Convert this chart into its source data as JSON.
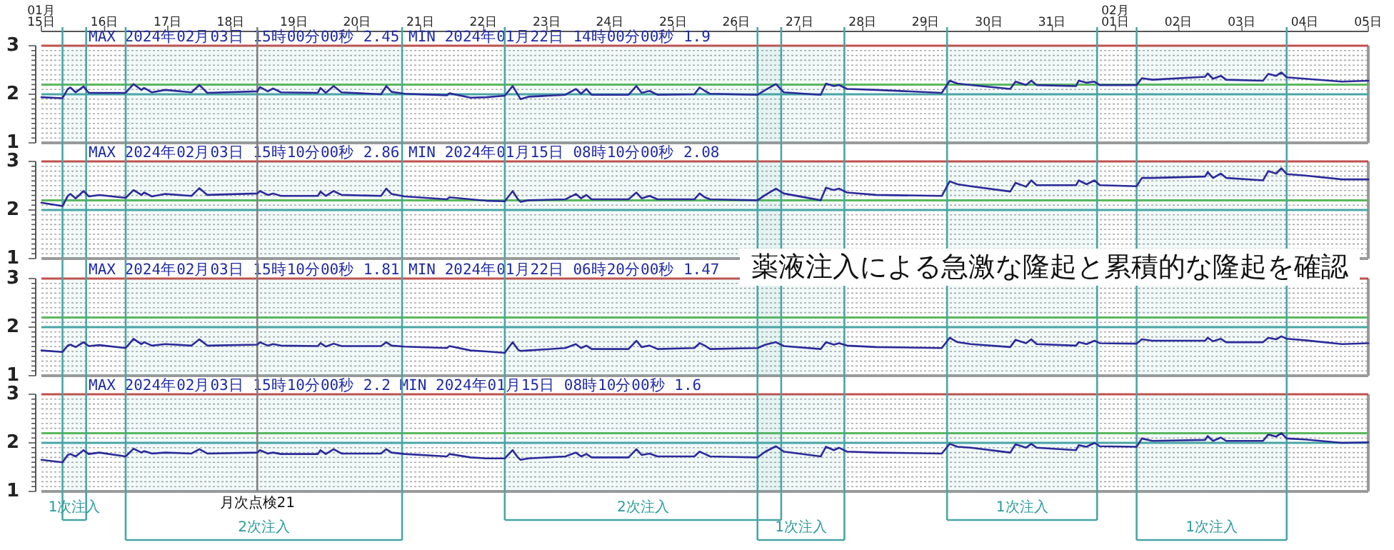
{
  "chart_data": [
    {
      "type": "line",
      "title": "MAX 2024年02月03日 15時00分00秒 2.45 MIN 2024年01月22日 14時00分00秒 1.9",
      "color": "#2b2b9a",
      "grid": "y",
      "xlim": [
        "2024-01-15T00:00",
        "2024-02-05T00:00"
      ],
      "ylim": [
        1,
        3
      ],
      "xticks": [
        {
          "value": "2024-01-15",
          "label": "01月 15日"
        },
        {
          "value": "2024-01-16",
          "label": "16日"
        },
        {
          "value": "2024-01-17",
          "label": "17日"
        },
        {
          "value": "2024-01-18",
          "label": "18日"
        },
        {
          "value": "2024-01-19",
          "label": "19日"
        },
        {
          "value": "2024-01-20",
          "label": "20日"
        },
        {
          "value": "2024-01-21",
          "label": "21日"
        },
        {
          "value": "2024-01-22",
          "label": "22日"
        },
        {
          "value": "2024-01-23",
          "label": "23日"
        },
        {
          "value": "2024-01-24",
          "label": "24日"
        },
        {
          "value": "2024-01-25",
          "label": "25日"
        },
        {
          "value": "2024-01-26",
          "label": "26日"
        },
        {
          "value": "2024-01-27",
          "label": "27日"
        },
        {
          "value": "2024-01-28",
          "label": "28日"
        },
        {
          "value": "2024-01-29",
          "label": "29日"
        },
        {
          "value": "2024-01-30",
          "label": "30日"
        },
        {
          "value": "2024-01-31",
          "label": "31日"
        },
        {
          "value": "2024-02-01",
          "label": "02月 01日"
        },
        {
          "value": "2024-02-02",
          "label": "02日"
        },
        {
          "value": "2024-02-03",
          "label": "03日"
        },
        {
          "value": "2024-02-04",
          "label": "04日"
        },
        {
          "value": "2024-02-05",
          "label": "05日"
        }
      ],
      "yticks": [
        1,
        {
          "value": 1.1,
          "label": null
        },
        {
          "value": 1.2,
          "label": null
        },
        {
          "value": 1.3,
          "label": null
        },
        {
          "value": 1.4,
          "label": null
        },
        {
          "value": 1.5,
          "label": null
        },
        {
          "value": 1.6,
          "label": null
        },
        {
          "value": 1.7,
          "label": null
        },
        {
          "value": 1.8,
          "label": null
        },
        {
          "value": 1.9,
          "label": null
        },
        2,
        {
          "value": 2.1,
          "label": null
        },
        {
          "value": 2.2,
          "label": null
        },
        {
          "value": 2.3,
          "label": null
        },
        {
          "value": 2.4,
          "label": null
        },
        {
          "value": 2.5,
          "label": null
        },
        {
          "value": 2.6,
          "label": null
        },
        {
          "value": 2.7,
          "label": null
        },
        {
          "value": 2.8,
          "label": null
        },
        {
          "value": 2.9,
          "label": null
        },
        3
      ],
      "ref_lines": [
        {
          "axis": "y",
          "value": 3,
          "color": "#c0504d"
        },
        {
          "axis": "y",
          "value": 2.2,
          "color": "#5cb85c"
        },
        {
          "axis": "y",
          "value": 2,
          "color": "#4aa5a5"
        },
        {
          "axis": "x",
          "value": "2024-01-18T10:00",
          "color": "#808080"
        },
        {
          "axis": "x",
          "value": "2024-01-15T08:00",
          "color": "#4aa5a5"
        },
        {
          "axis": "x",
          "value": "2024-01-15T17:00",
          "color": "#4aa5a5"
        },
        {
          "axis": "x",
          "value": "2024-01-16T08:00",
          "color": "#4aa5a5"
        },
        {
          "axis": "x",
          "value": "2024-01-20T17:00",
          "color": "#4aa5a5"
        },
        {
          "axis": "x",
          "value": "2024-01-22T08:00",
          "color": "#4aa5a5"
        },
        {
          "axis": "x",
          "value": "2024-01-26T08:00",
          "color": "#4aa5a5"
        },
        {
          "axis": "x",
          "value": "2024-01-26T17:00",
          "color": "#4aa5a5"
        },
        {
          "axis": "x",
          "value": "2024-01-27T17:00",
          "color": "#4aa5a5"
        },
        {
          "axis": "x",
          "value": "2024-01-29T08:00",
          "color": "#4aa5a5"
        },
        {
          "axis": "x",
          "value": "2024-01-31T17:00",
          "color": "#4aa5a5"
        },
        {
          "axis": "x",
          "value": "2024-02-01T08:00",
          "color": "#4aa5a5"
        },
        {
          "axis": "x",
          "value": "2024-02-03T17:00",
          "color": "#4aa5a5"
        }
      ],
      "bands": [
        {
          "axis": "x",
          "from": "2024-01-15T08:00",
          "to": "2024-01-15T17:00",
          "color": "#4aa5a5"
        },
        {
          "axis": "x",
          "from": "2024-01-16T08:00",
          "to": "2024-01-20T17:00",
          "color": "#4aa5a5"
        },
        {
          "axis": "x",
          "from": "2024-01-22T08:00",
          "to": "2024-01-26T17:00",
          "color": "#4aa5a5"
        },
        {
          "axis": "x",
          "from": "2024-01-26T08:00",
          "to": "2024-01-27T17:00",
          "color": "#4aa5a5"
        },
        {
          "axis": "x",
          "from": "2024-01-29T08:00",
          "to": "2024-01-31T17:00",
          "color": "#4aa5a5"
        },
        {
          "axis": "x",
          "from": "2024-02-01T08:00",
          "to": "2024-02-03T17:00",
          "color": "#4aa5a5"
        }
      ],
      "x": [
        "2024-01-15T00:00",
        "2024-01-15T08:00",
        "2024-01-15T10:00",
        "2024-01-15T11:00",
        "2024-01-15T13:00",
        "2024-01-15T16:00",
        "2024-01-15T18:00",
        "2024-01-15T22:00",
        "2024-01-16T08:00",
        "2024-01-16T11:00",
        "2024-01-16T14:00",
        "2024-01-16T15:00",
        "2024-01-16T18:00",
        "2024-01-16T23:00",
        "2024-01-17T09:00",
        "2024-01-17T12:00",
        "2024-01-17T15:00",
        "2024-01-18T10:00",
        "2024-01-18T11:00",
        "2024-01-18T14:00",
        "2024-01-18T16:00",
        "2024-01-18T19:00",
        "2024-01-19T09:00",
        "2024-01-19T10:00",
        "2024-01-19T12:00",
        "2024-01-19T15:00",
        "2024-01-19T18:00",
        "2024-01-20T09:00",
        "2024-01-20T11:00",
        "2024-01-20T13:00",
        "2024-01-20T18:00",
        "2024-01-21T10:00",
        "2024-01-21T11:00",
        "2024-01-21T19:00",
        "2024-01-22T01:00",
        "2024-01-22T08:00",
        "2024-01-22T11:00",
        "2024-01-22T13:00",
        "2024-01-22T14:00",
        "2024-01-22T17:00",
        "2024-01-23T07:00",
        "2024-01-23T11:00",
        "2024-01-23T13:00",
        "2024-01-23T15:00",
        "2024-01-23T17:00",
        "2024-01-24T07:00",
        "2024-01-24T10:00",
        "2024-01-24T12:00",
        "2024-01-24T15:00",
        "2024-01-24T18:00",
        "2024-01-25T08:00",
        "2024-01-25T10:00",
        "2024-01-25T12:00",
        "2024-01-25T14:00",
        "2024-01-26T08:00",
        "2024-01-26T11:00",
        "2024-01-26T15:00",
        "2024-01-26T18:00",
        "2024-01-27T08:00",
        "2024-01-27T10:00",
        "2024-01-27T13:00",
        "2024-01-27T15:00",
        "2024-01-27T18:00",
        "2024-01-28T05:00",
        "2024-01-29T06:00",
        "2024-01-29T09:00",
        "2024-01-29T12:00",
        "2024-01-29T17:00",
        "2024-01-30T08:00",
        "2024-01-30T10:00",
        "2024-01-30T14:00",
        "2024-01-30T16:00",
        "2024-01-30T18:00",
        "2024-01-31T09:00",
        "2024-01-31T10:00",
        "2024-01-31T13:00",
        "2024-01-31T16:00",
        "2024-01-31T18:00",
        "2024-02-01T08:00",
        "2024-02-01T10:00",
        "2024-02-01T14:00",
        "2024-02-02T10:00",
        "2024-02-02T11:00",
        "2024-02-02T13:00",
        "2024-02-02T16:00",
        "2024-02-02T18:00",
        "2024-02-03T08:00",
        "2024-02-03T10:00",
        "2024-02-03T13:00",
        "2024-02-03T15:00",
        "2024-02-03T17:00",
        "2024-02-04T00:00",
        "2024-02-04T14:00",
        "2024-02-05T00:00"
      ],
      "values": [
        1.94,
        1.92,
        2.11,
        2.14,
        2.04,
        2.16,
        2.03,
        2.03,
        2.03,
        2.21,
        2.09,
        2.13,
        2.04,
        2.09,
        2.04,
        2.19,
        2.03,
        2.06,
        2.15,
        2.06,
        2.12,
        2.04,
        2.03,
        2.13,
        2.03,
        2.17,
        2.04,
        2.0,
        2.17,
        2.05,
        2.01,
        1.98,
        2.02,
        1.93,
        1.94,
        1.97,
        2.17,
        1.99,
        1.9,
        1.95,
        1.99,
        2.11,
        2.01,
        2.11,
        1.99,
        1.99,
        2.17,
        2.03,
        2.07,
        1.99,
        2.0,
        2.14,
        2.07,
        2.01,
        1.99,
        2.09,
        2.21,
        2.04,
        1.99,
        2.22,
        2.17,
        2.19,
        2.11,
        2.09,
        2.03,
        2.28,
        2.22,
        2.19,
        2.11,
        2.26,
        2.19,
        2.28,
        2.19,
        2.17,
        2.28,
        2.24,
        2.26,
        2.19,
        2.19,
        2.33,
        2.3,
        2.36,
        2.43,
        2.32,
        2.38,
        2.3,
        2.28,
        2.42,
        2.38,
        2.45,
        2.35,
        2.32,
        2.26,
        2.28
      ]
    },
    {
      "type": "line",
      "title": "MAX 2024年02月03日 15時10分00秒 2.86 MIN 2024年01月15日 08時10分00秒 2.08",
      "color": "#2b2b9a",
      "grid": "y",
      "tick_labels": "y",
      "xlim": [
        "2024-01-15T00:00",
        "2024-02-05T00:00"
      ],
      "ylim": [
        1,
        3
      ],
      "yticks": [
        1,
        {
          "value": 1.1,
          "label": null
        },
        {
          "value": 1.2,
          "label": null
        },
        {
          "value": 1.3,
          "label": null
        },
        {
          "value": 1.4,
          "label": null
        },
        {
          "value": 1.5,
          "label": null
        },
        {
          "value": 1.6,
          "label": null
        },
        {
          "value": 1.7,
          "label": null
        },
        {
          "value": 1.8,
          "label": null
        },
        {
          "value": 1.9,
          "label": null
        },
        2,
        {
          "value": 2.1,
          "label": null
        },
        {
          "value": 2.2,
          "label": null
        },
        {
          "value": 2.3,
          "label": null
        },
        {
          "value": 2.4,
          "label": null
        },
        {
          "value": 2.5,
          "label": null
        },
        {
          "value": 2.6,
          "label": null
        },
        {
          "value": 2.7,
          "label": null
        },
        {
          "value": 2.8,
          "label": null
        },
        {
          "value": 2.9,
          "label": null
        },
        3
      ],
      "ref_lines": [
        {
          "axis": "y",
          "value": 3,
          "color": "#c0504d"
        },
        {
          "axis": "y",
          "value": 2.2,
          "color": "#5cb85c"
        },
        {
          "axis": "y",
          "value": 2,
          "color": "#4aa5a5"
        },
        {
          "axis": "x",
          "value": "2024-01-18T10:00",
          "color": "#808080"
        },
        {
          "axis": "x",
          "value": "2024-01-15T08:00",
          "color": "#4aa5a5"
        },
        {
          "axis": "x",
          "value": "2024-01-15T17:00",
          "color": "#4aa5a5"
        },
        {
          "axis": "x",
          "value": "2024-01-16T08:00",
          "color": "#4aa5a5"
        },
        {
          "axis": "x",
          "value": "2024-01-20T17:00",
          "color": "#4aa5a5"
        },
        {
          "axis": "x",
          "value": "2024-01-22T08:00",
          "color": "#4aa5a5"
        },
        {
          "axis": "x",
          "value": "2024-01-26T08:00",
          "color": "#4aa5a5"
        },
        {
          "axis": "x",
          "value": "2024-01-26T17:00",
          "color": "#4aa5a5"
        },
        {
          "axis": "x",
          "value": "2024-01-27T17:00",
          "color": "#4aa5a5"
        },
        {
          "axis": "x",
          "value": "2024-01-29T08:00",
          "color": "#4aa5a5"
        },
        {
          "axis": "x",
          "value": "2024-01-31T17:00",
          "color": "#4aa5a5"
        },
        {
          "axis": "x",
          "value": "2024-02-01T08:00",
          "color": "#4aa5a5"
        },
        {
          "axis": "x",
          "value": "2024-02-03T17:00",
          "color": "#4aa5a5"
        }
      ],
      "bands": [
        {
          "axis": "x",
          "from": "2024-01-15T08:00",
          "to": "2024-01-15T17:00",
          "color": "#4aa5a5"
        },
        {
          "axis": "x",
          "from": "2024-01-16T08:00",
          "to": "2024-01-20T17:00",
          "color": "#4aa5a5"
        },
        {
          "axis": "x",
          "from": "2024-01-22T08:00",
          "to": "2024-01-26T17:00",
          "color": "#4aa5a5"
        },
        {
          "axis": "x",
          "from": "2024-01-26T08:00",
          "to": "2024-01-27T17:00",
          "color": "#4aa5a5"
        },
        {
          "axis": "x",
          "from": "2024-01-29T08:00",
          "to": "2024-01-31T17:00",
          "color": "#4aa5a5"
        },
        {
          "axis": "x",
          "from": "2024-02-01T08:00",
          "to": "2024-02-03T17:00",
          "color": "#4aa5a5"
        }
      ],
      "x": [
        "2024-01-15T00:00",
        "2024-01-15T08:00",
        "2024-01-15T10:00",
        "2024-01-15T11:00",
        "2024-01-15T13:00",
        "2024-01-15T16:00",
        "2024-01-15T18:00",
        "2024-01-15T22:00",
        "2024-01-16T08:00",
        "2024-01-16T11:00",
        "2024-01-16T14:00",
        "2024-01-16T15:00",
        "2024-01-16T18:00",
        "2024-01-16T23:00",
        "2024-01-17T09:00",
        "2024-01-17T12:00",
        "2024-01-17T15:00",
        "2024-01-18T10:00",
        "2024-01-18T11:00",
        "2024-01-18T14:00",
        "2024-01-18T16:00",
        "2024-01-18T19:00",
        "2024-01-19T09:00",
        "2024-01-19T10:00",
        "2024-01-19T12:00",
        "2024-01-19T15:00",
        "2024-01-19T18:00",
        "2024-01-20T09:00",
        "2024-01-20T11:00",
        "2024-01-20T13:00",
        "2024-01-20T18:00",
        "2024-01-21T10:00",
        "2024-01-21T11:00",
        "2024-01-21T19:00",
        "2024-01-22T01:00",
        "2024-01-22T08:00",
        "2024-01-22T11:00",
        "2024-01-22T13:00",
        "2024-01-22T14:00",
        "2024-01-22T17:00",
        "2024-01-23T07:00",
        "2024-01-23T11:00",
        "2024-01-23T13:00",
        "2024-01-23T15:00",
        "2024-01-23T17:00",
        "2024-01-24T07:00",
        "2024-01-24T10:00",
        "2024-01-24T12:00",
        "2024-01-24T15:00",
        "2024-01-24T18:00",
        "2024-01-25T08:00",
        "2024-01-25T10:00",
        "2024-01-25T12:00",
        "2024-01-25T14:00",
        "2024-01-26T08:00",
        "2024-01-26T11:00",
        "2024-01-26T15:00",
        "2024-01-26T18:00",
        "2024-01-27T08:00",
        "2024-01-27T10:00",
        "2024-01-27T13:00",
        "2024-01-27T15:00",
        "2024-01-27T18:00",
        "2024-01-28T05:00",
        "2024-01-29T06:00",
        "2024-01-29T09:00",
        "2024-01-29T12:00",
        "2024-01-29T17:00",
        "2024-01-30T08:00",
        "2024-01-30T10:00",
        "2024-01-30T14:00",
        "2024-01-30T16:00",
        "2024-01-30T18:00",
        "2024-01-31T09:00",
        "2024-01-31T10:00",
        "2024-01-31T13:00",
        "2024-01-31T16:00",
        "2024-01-31T18:00",
        "2024-02-01T08:00",
        "2024-02-01T10:00",
        "2024-02-01T14:00",
        "2024-02-02T10:00",
        "2024-02-02T11:00",
        "2024-02-02T13:00",
        "2024-02-02T16:00",
        "2024-02-02T18:00",
        "2024-02-03T08:00",
        "2024-02-03T10:00",
        "2024-02-03T13:00",
        "2024-02-03T15:00",
        "2024-02-03T17:00",
        "2024-02-04T00:00",
        "2024-02-04T14:00",
        "2024-02-05T00:00"
      ],
      "values": [
        2.15,
        2.08,
        2.29,
        2.33,
        2.24,
        2.39,
        2.28,
        2.31,
        2.25,
        2.41,
        2.31,
        2.36,
        2.28,
        2.33,
        2.29,
        2.45,
        2.31,
        2.34,
        2.39,
        2.31,
        2.34,
        2.29,
        2.29,
        2.38,
        2.29,
        2.39,
        2.31,
        2.29,
        2.44,
        2.33,
        2.28,
        2.22,
        2.26,
        2.22,
        2.19,
        2.18,
        2.39,
        2.22,
        2.17,
        2.2,
        2.22,
        2.33,
        2.24,
        2.31,
        2.22,
        2.22,
        2.36,
        2.24,
        2.29,
        2.22,
        2.22,
        2.34,
        2.26,
        2.22,
        2.2,
        2.31,
        2.44,
        2.34,
        2.2,
        2.46,
        2.41,
        2.44,
        2.36,
        2.31,
        2.29,
        2.59,
        2.53,
        2.49,
        2.38,
        2.56,
        2.48,
        2.61,
        2.51,
        2.51,
        2.61,
        2.53,
        2.61,
        2.51,
        2.49,
        2.66,
        2.66,
        2.69,
        2.78,
        2.66,
        2.75,
        2.66,
        2.61,
        2.8,
        2.75,
        2.86,
        2.74,
        2.71,
        2.63,
        2.63
      ]
    },
    {
      "type": "line",
      "title": "MAX 2024年02月03日 15時10分00秒 1.81 MIN 2024年01月22日 06時20分00秒 1.47",
      "color": "#2b2b9a",
      "grid": "y",
      "tick_labels": "y",
      "xlim": [
        "2024-01-15T00:00",
        "2024-02-05T00:00"
      ],
      "ylim": [
        1,
        3
      ],
      "annotations": [
        "薬液注入による急激な隆起と累積的な隆起を確認"
      ],
      "yticks": [
        1,
        {
          "value": 1.1,
          "label": null
        },
        {
          "value": 1.2,
          "label": null
        },
        {
          "value": 1.3,
          "label": null
        },
        {
          "value": 1.4,
          "label": null
        },
        {
          "value": 1.5,
          "label": null
        },
        {
          "value": 1.6,
          "label": null
        },
        {
          "value": 1.7,
          "label": null
        },
        {
          "value": 1.8,
          "label": null
        },
        {
          "value": 1.9,
          "label": null
        },
        2,
        {
          "value": 2.1,
          "label": null
        },
        {
          "value": 2.2,
          "label": null
        },
        {
          "value": 2.3,
          "label": null
        },
        {
          "value": 2.4,
          "label": null
        },
        {
          "value": 2.5,
          "label": null
        },
        {
          "value": 2.6,
          "label": null
        },
        {
          "value": 2.7,
          "label": null
        },
        {
          "value": 2.8,
          "label": null
        },
        {
          "value": 2.9,
          "label": null
        },
        3
      ],
      "ref_lines": [
        {
          "axis": "y",
          "value": 3,
          "color": "#c0504d"
        },
        {
          "axis": "y",
          "value": 2.2,
          "color": "#5cb85c"
        },
        {
          "axis": "y",
          "value": 2,
          "color": "#4aa5a5"
        },
        {
          "axis": "x",
          "value": "2024-01-18T10:00",
          "color": "#808080"
        },
        {
          "axis": "x",
          "value": "2024-01-15T08:00",
          "color": "#4aa5a5"
        },
        {
          "axis": "x",
          "value": "2024-01-15T17:00",
          "color": "#4aa5a5"
        },
        {
          "axis": "x",
          "value": "2024-01-16T08:00",
          "color": "#4aa5a5"
        },
        {
          "axis": "x",
          "value": "2024-01-20T17:00",
          "color": "#4aa5a5"
        },
        {
          "axis": "x",
          "value": "2024-01-22T08:00",
          "color": "#4aa5a5"
        },
        {
          "axis": "x",
          "value": "2024-01-26T08:00",
          "color": "#4aa5a5"
        },
        {
          "axis": "x",
          "value": "2024-01-26T17:00",
          "color": "#4aa5a5"
        },
        {
          "axis": "x",
          "value": "2024-01-27T17:00",
          "color": "#4aa5a5"
        },
        {
          "axis": "x",
          "value": "2024-01-29T08:00",
          "color": "#4aa5a5"
        },
        {
          "axis": "x",
          "value": "2024-01-31T17:00",
          "color": "#4aa5a5"
        },
        {
          "axis": "x",
          "value": "2024-02-01T08:00",
          "color": "#4aa5a5"
        },
        {
          "axis": "x",
          "value": "2024-02-03T17:00",
          "color": "#4aa5a5"
        }
      ],
      "bands": [
        {
          "axis": "x",
          "from": "2024-01-15T08:00",
          "to": "2024-01-15T17:00",
          "color": "#4aa5a5"
        },
        {
          "axis": "x",
          "from": "2024-01-16T08:00",
          "to": "2024-01-20T17:00",
          "color": "#4aa5a5"
        },
        {
          "axis": "x",
          "from": "2024-01-22T08:00",
          "to": "2024-01-26T17:00",
          "color": "#4aa5a5"
        },
        {
          "axis": "x",
          "from": "2024-01-26T08:00",
          "to": "2024-01-27T17:00",
          "color": "#4aa5a5"
        },
        {
          "axis": "x",
          "from": "2024-01-29T08:00",
          "to": "2024-01-31T17:00",
          "color": "#4aa5a5"
        },
        {
          "axis": "x",
          "from": "2024-02-01T08:00",
          "to": "2024-02-03T17:00",
          "color": "#4aa5a5"
        }
      ],
      "x": [
        "2024-01-15T00:00",
        "2024-01-15T08:00",
        "2024-01-15T10:00",
        "2024-01-15T11:00",
        "2024-01-15T13:00",
        "2024-01-15T16:00",
        "2024-01-15T18:00",
        "2024-01-15T22:00",
        "2024-01-16T08:00",
        "2024-01-16T11:00",
        "2024-01-16T14:00",
        "2024-01-16T15:00",
        "2024-01-16T18:00",
        "2024-01-16T23:00",
        "2024-01-17T09:00",
        "2024-01-17T12:00",
        "2024-01-17T15:00",
        "2024-01-18T10:00",
        "2024-01-18T11:00",
        "2024-01-18T14:00",
        "2024-01-18T16:00",
        "2024-01-18T19:00",
        "2024-01-19T09:00",
        "2024-01-19T10:00",
        "2024-01-19T12:00",
        "2024-01-19T15:00",
        "2024-01-19T18:00",
        "2024-01-20T09:00",
        "2024-01-20T11:00",
        "2024-01-20T13:00",
        "2024-01-20T18:00",
        "2024-01-21T10:00",
        "2024-01-21T11:00",
        "2024-01-21T19:00",
        "2024-01-22T01:00",
        "2024-01-22T08:00",
        "2024-01-22T11:00",
        "2024-01-22T13:00",
        "2024-01-22T14:00",
        "2024-01-22T17:00",
        "2024-01-23T07:00",
        "2024-01-23T11:00",
        "2024-01-23T13:00",
        "2024-01-23T15:00",
        "2024-01-23T17:00",
        "2024-01-24T07:00",
        "2024-01-24T10:00",
        "2024-01-24T12:00",
        "2024-01-24T15:00",
        "2024-01-24T18:00",
        "2024-01-25T08:00",
        "2024-01-25T10:00",
        "2024-01-25T12:00",
        "2024-01-25T14:00",
        "2024-01-26T08:00",
        "2024-01-26T11:00",
        "2024-01-26T15:00",
        "2024-01-26T18:00",
        "2024-01-27T08:00",
        "2024-01-27T10:00",
        "2024-01-27T13:00",
        "2024-01-27T15:00",
        "2024-01-27T18:00",
        "2024-01-28T05:00",
        "2024-01-29T06:00",
        "2024-01-29T09:00",
        "2024-01-29T12:00",
        "2024-01-29T17:00",
        "2024-01-30T08:00",
        "2024-01-30T10:00",
        "2024-01-30T14:00",
        "2024-01-30T16:00",
        "2024-01-30T18:00",
        "2024-01-31T09:00",
        "2024-01-31T10:00",
        "2024-01-31T13:00",
        "2024-01-31T16:00",
        "2024-01-31T18:00",
        "2024-02-01T08:00",
        "2024-02-01T10:00",
        "2024-02-01T14:00",
        "2024-02-02T10:00",
        "2024-02-02T11:00",
        "2024-02-02T13:00",
        "2024-02-02T16:00",
        "2024-02-02T18:00",
        "2024-02-03T08:00",
        "2024-02-03T10:00",
        "2024-02-03T13:00",
        "2024-02-03T15:00",
        "2024-02-03T17:00",
        "2024-02-04T00:00",
        "2024-02-04T14:00",
        "2024-02-05T00:00"
      ],
      "values": [
        1.52,
        1.49,
        1.62,
        1.64,
        1.59,
        1.69,
        1.61,
        1.63,
        1.57,
        1.76,
        1.65,
        1.69,
        1.62,
        1.65,
        1.62,
        1.75,
        1.62,
        1.64,
        1.69,
        1.62,
        1.65,
        1.62,
        1.61,
        1.67,
        1.6,
        1.66,
        1.61,
        1.61,
        1.69,
        1.62,
        1.6,
        1.57,
        1.61,
        1.52,
        1.5,
        1.47,
        1.69,
        1.54,
        1.51,
        1.52,
        1.57,
        1.65,
        1.57,
        1.62,
        1.55,
        1.55,
        1.72,
        1.59,
        1.62,
        1.55,
        1.57,
        1.67,
        1.62,
        1.55,
        1.57,
        1.64,
        1.69,
        1.61,
        1.55,
        1.69,
        1.64,
        1.67,
        1.62,
        1.59,
        1.57,
        1.78,
        1.69,
        1.65,
        1.59,
        1.74,
        1.67,
        1.75,
        1.65,
        1.62,
        1.69,
        1.65,
        1.72,
        1.67,
        1.66,
        1.75,
        1.72,
        1.72,
        1.78,
        1.71,
        1.76,
        1.69,
        1.69,
        1.78,
        1.75,
        1.81,
        1.76,
        1.73,
        1.65,
        1.67
      ]
    },
    {
      "type": "line",
      "title": "MAX 2024年02月03日 15時10分00秒 2.2 MIN 2024年01月15日 08時10分00秒 1.6",
      "color": "#2b2b9a",
      "grid": "y",
      "tick_labels": "y",
      "xlim": [
        "2024-01-15T00:00",
        "2024-02-05T00:00"
      ],
      "ylim": [
        1,
        3
      ],
      "yticks": [
        1,
        {
          "value": 1.1,
          "label": null
        },
        {
          "value": 1.2,
          "label": null
        },
        {
          "value": 1.3,
          "label": null
        },
        {
          "value": 1.4,
          "label": null
        },
        {
          "value": 1.5,
          "label": null
        },
        {
          "value": 1.6,
          "label": null
        },
        {
          "value": 1.7,
          "label": null
        },
        {
          "value": 1.8,
          "label": null
        },
        {
          "value": 1.9,
          "label": null
        },
        2,
        {
          "value": 2.1,
          "label": null
        },
        {
          "value": 2.2,
          "label": null
        },
        {
          "value": 2.3,
          "label": null
        },
        {
          "value": 2.4,
          "label": null
        },
        {
          "value": 2.5,
          "label": null
        },
        {
          "value": 2.6,
          "label": null
        },
        {
          "value": 2.7,
          "label": null
        },
        {
          "value": 2.8,
          "label": null
        },
        {
          "value": 2.9,
          "label": null
        },
        3
      ],
      "ref_lines": [
        {
          "axis": "y",
          "value": 3,
          "color": "#c0504d"
        },
        {
          "axis": "y",
          "value": 2.2,
          "color": "#5cb85c"
        },
        {
          "axis": "y",
          "value": 2,
          "color": "#4aa5a5"
        },
        {
          "axis": "x",
          "value": "2024-01-18T10:00",
          "color": "#808080",
          "label": "月次点検21"
        },
        {
          "axis": "x",
          "value": "2024-01-15T08:00",
          "color": "#4aa5a5"
        },
        {
          "axis": "x",
          "value": "2024-01-15T17:00",
          "color": "#4aa5a5"
        },
        {
          "axis": "x",
          "value": "2024-01-16T08:00",
          "color": "#4aa5a5"
        },
        {
          "axis": "x",
          "value": "2024-01-20T17:00",
          "color": "#4aa5a5"
        },
        {
          "axis": "x",
          "value": "2024-01-22T08:00",
          "color": "#4aa5a5"
        },
        {
          "axis": "x",
          "value": "2024-01-26T08:00",
          "color": "#4aa5a5"
        },
        {
          "axis": "x",
          "value": "2024-01-26T17:00",
          "color": "#4aa5a5"
        },
        {
          "axis": "x",
          "value": "2024-01-27T17:00",
          "color": "#4aa5a5"
        },
        {
          "axis": "x",
          "value": "2024-01-29T08:00",
          "color": "#4aa5a5"
        },
        {
          "axis": "x",
          "value": "2024-01-31T17:00",
          "color": "#4aa5a5"
        },
        {
          "axis": "x",
          "value": "2024-02-01T08:00",
          "color": "#4aa5a5"
        },
        {
          "axis": "x",
          "value": "2024-02-03T17:00",
          "color": "#4aa5a5"
        }
      ],
      "bands": [
        {
          "axis": "x",
          "from": "2024-01-15T08:00",
          "to": "2024-01-15T17:00",
          "color": "#4aa5a5",
          "label": "1次注入"
        },
        {
          "axis": "x",
          "from": "2024-01-16T08:00",
          "to": "2024-01-20T17:00",
          "color": "#4aa5a5",
          "label": "2次注入"
        },
        {
          "axis": "x",
          "from": "2024-01-22T08:00",
          "to": "2024-01-26T17:00",
          "color": "#4aa5a5",
          "label": "2次注入"
        },
        {
          "axis": "x",
          "from": "2024-01-26T08:00",
          "to": "2024-01-27T17:00",
          "color": "#4aa5a5",
          "label": "1次注入"
        },
        {
          "axis": "x",
          "from": "2024-01-29T08:00",
          "to": "2024-01-31T17:00",
          "color": "#4aa5a5",
          "label": "1次注入"
        },
        {
          "axis": "x",
          "from": "2024-02-01T08:00",
          "to": "2024-02-03T17:00",
          "color": "#4aa5a5",
          "label": "1次注入"
        }
      ],
      "x": [
        "2024-01-15T00:00",
        "2024-01-15T08:00",
        "2024-01-15T10:00",
        "2024-01-15T11:00",
        "2024-01-15T13:00",
        "2024-01-15T16:00",
        "2024-01-15T18:00",
        "2024-01-15T22:00",
        "2024-01-16T08:00",
        "2024-01-16T11:00",
        "2024-01-16T14:00",
        "2024-01-16T15:00",
        "2024-01-16T18:00",
        "2024-01-16T23:00",
        "2024-01-17T09:00",
        "2024-01-17T12:00",
        "2024-01-17T15:00",
        "2024-01-18T10:00",
        "2024-01-18T11:00",
        "2024-01-18T14:00",
        "2024-01-18T16:00",
        "2024-01-18T19:00",
        "2024-01-19T09:00",
        "2024-01-19T10:00",
        "2024-01-19T12:00",
        "2024-01-19T15:00",
        "2024-01-19T18:00",
        "2024-01-20T09:00",
        "2024-01-20T11:00",
        "2024-01-20T13:00",
        "2024-01-20T18:00",
        "2024-01-21T10:00",
        "2024-01-21T11:00",
        "2024-01-21T19:00",
        "2024-01-22T01:00",
        "2024-01-22T08:00",
        "2024-01-22T11:00",
        "2024-01-22T13:00",
        "2024-01-22T14:00",
        "2024-01-22T17:00",
        "2024-01-23T07:00",
        "2024-01-23T11:00",
        "2024-01-23T13:00",
        "2024-01-23T15:00",
        "2024-01-23T17:00",
        "2024-01-24T07:00",
        "2024-01-24T10:00",
        "2024-01-24T12:00",
        "2024-01-24T15:00",
        "2024-01-24T18:00",
        "2024-01-25T08:00",
        "2024-01-25T10:00",
        "2024-01-25T12:00",
        "2024-01-25T14:00",
        "2024-01-26T08:00",
        "2024-01-26T11:00",
        "2024-01-26T15:00",
        "2024-01-26T18:00",
        "2024-01-27T08:00",
        "2024-01-27T10:00",
        "2024-01-27T13:00",
        "2024-01-27T15:00",
        "2024-01-27T18:00",
        "2024-01-28T05:00",
        "2024-01-29T06:00",
        "2024-01-29T09:00",
        "2024-01-29T12:00",
        "2024-01-29T17:00",
        "2024-01-30T08:00",
        "2024-01-30T10:00",
        "2024-01-30T14:00",
        "2024-01-30T16:00",
        "2024-01-30T18:00",
        "2024-01-31T09:00",
        "2024-01-31T10:00",
        "2024-01-31T13:00",
        "2024-01-31T16:00",
        "2024-01-31T18:00",
        "2024-02-01T08:00",
        "2024-02-01T10:00",
        "2024-02-01T14:00",
        "2024-02-02T10:00",
        "2024-02-02T11:00",
        "2024-02-02T13:00",
        "2024-02-02T16:00",
        "2024-02-02T18:00",
        "2024-02-03T08:00",
        "2024-02-03T10:00",
        "2024-02-03T13:00",
        "2024-02-03T15:00",
        "2024-02-03T17:00",
        "2024-02-04T00:00",
        "2024-02-04T14:00",
        "2024-02-05T00:00"
      ],
      "values": [
        1.65,
        1.6,
        1.75,
        1.77,
        1.72,
        1.85,
        1.77,
        1.8,
        1.72,
        1.88,
        1.8,
        1.83,
        1.78,
        1.8,
        1.78,
        1.87,
        1.78,
        1.8,
        1.85,
        1.78,
        1.8,
        1.77,
        1.77,
        1.85,
        1.77,
        1.87,
        1.78,
        1.78,
        1.87,
        1.8,
        1.77,
        1.72,
        1.77,
        1.7,
        1.68,
        1.68,
        1.85,
        1.7,
        1.65,
        1.68,
        1.72,
        1.8,
        1.72,
        1.77,
        1.7,
        1.7,
        1.87,
        1.75,
        1.78,
        1.72,
        1.72,
        1.82,
        1.77,
        1.72,
        1.7,
        1.82,
        1.93,
        1.82,
        1.72,
        1.92,
        1.85,
        1.9,
        1.82,
        1.8,
        1.78,
        1.98,
        1.92,
        1.9,
        1.8,
        1.97,
        1.9,
        1.98,
        1.9,
        1.85,
        1.95,
        1.92,
        2.0,
        1.93,
        1.92,
        2.09,
        2.04,
        2.06,
        2.14,
        2.04,
        2.11,
        2.04,
        2.04,
        2.17,
        2.13,
        2.2,
        2.09,
        2.07,
        2.0,
        2.01
      ]
    }
  ]
}
